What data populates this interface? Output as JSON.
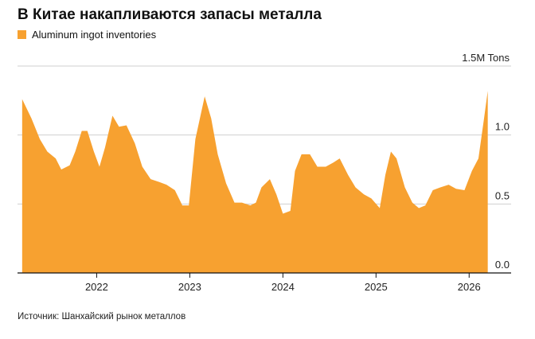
{
  "chart_data": {
    "type": "area",
    "title": "В Китае накапливаются запасы металла",
    "source": "Источник: Шанхайский рынок металлов",
    "series": [
      {
        "name": "Aluminum ingot inventories",
        "color": "#f7a130",
        "x": [
          2021.2,
          2021.3,
          2021.39,
          2021.47,
          2021.56,
          2021.62,
          2021.71,
          2021.77,
          2021.84,
          2021.9,
          2021.97,
          2022.03,
          2022.09,
          2022.17,
          2022.24,
          2022.32,
          2022.41,
          2022.49,
          2022.58,
          2022.67,
          2022.75,
          2022.84,
          2022.92,
          2022.99,
          2023.06,
          2023.16,
          2023.23,
          2023.3,
          2023.39,
          2023.48,
          2023.56,
          2023.65,
          2023.71,
          2023.77,
          2023.86,
          2023.93,
          2024.0,
          2024.08,
          2024.13,
          2024.2,
          2024.29,
          2024.37,
          2024.46,
          2024.54,
          2024.61,
          2024.7,
          2024.78,
          2024.87,
          2024.95,
          2025.04,
          2025.1,
          2025.16,
          2025.22,
          2025.31,
          2025.39,
          2025.46,
          2025.53,
          2025.61,
          2025.69,
          2025.78,
          2025.86,
          2025.95,
          2026.03,
          2026.1,
          2026.16,
          2026.2
        ],
        "values": [
          1.26,
          1.12,
          0.97,
          0.88,
          0.83,
          0.75,
          0.78,
          0.88,
          1.03,
          1.03,
          0.88,
          0.77,
          0.91,
          1.14,
          1.06,
          1.07,
          0.94,
          0.77,
          0.68,
          0.66,
          0.64,
          0.6,
          0.49,
          0.49,
          0.97,
          1.28,
          1.12,
          0.86,
          0.65,
          0.51,
          0.51,
          0.49,
          0.51,
          0.62,
          0.68,
          0.57,
          0.43,
          0.45,
          0.74,
          0.86,
          0.86,
          0.77,
          0.77,
          0.8,
          0.83,
          0.71,
          0.62,
          0.57,
          0.54,
          0.47,
          0.71,
          0.88,
          0.83,
          0.62,
          0.51,
          0.47,
          0.49,
          0.6,
          0.62,
          0.64,
          0.61,
          0.6,
          0.74,
          0.83,
          1.12,
          1.32
        ]
      }
    ],
    "xlim": [
      2021.15,
      2026.22
    ],
    "xticks": [
      2022,
      2023,
      2024,
      2025,
      2026
    ],
    "ylim": [
      0,
      1.5
    ],
    "yticks": [
      {
        "value": 0,
        "label": "0.0"
      },
      0.5,
      {
        "value": 1,
        "label": "1.0"
      },
      {
        "value": 1.5,
        "label": "1.5M Tons"
      }
    ],
    "grid": true
  }
}
